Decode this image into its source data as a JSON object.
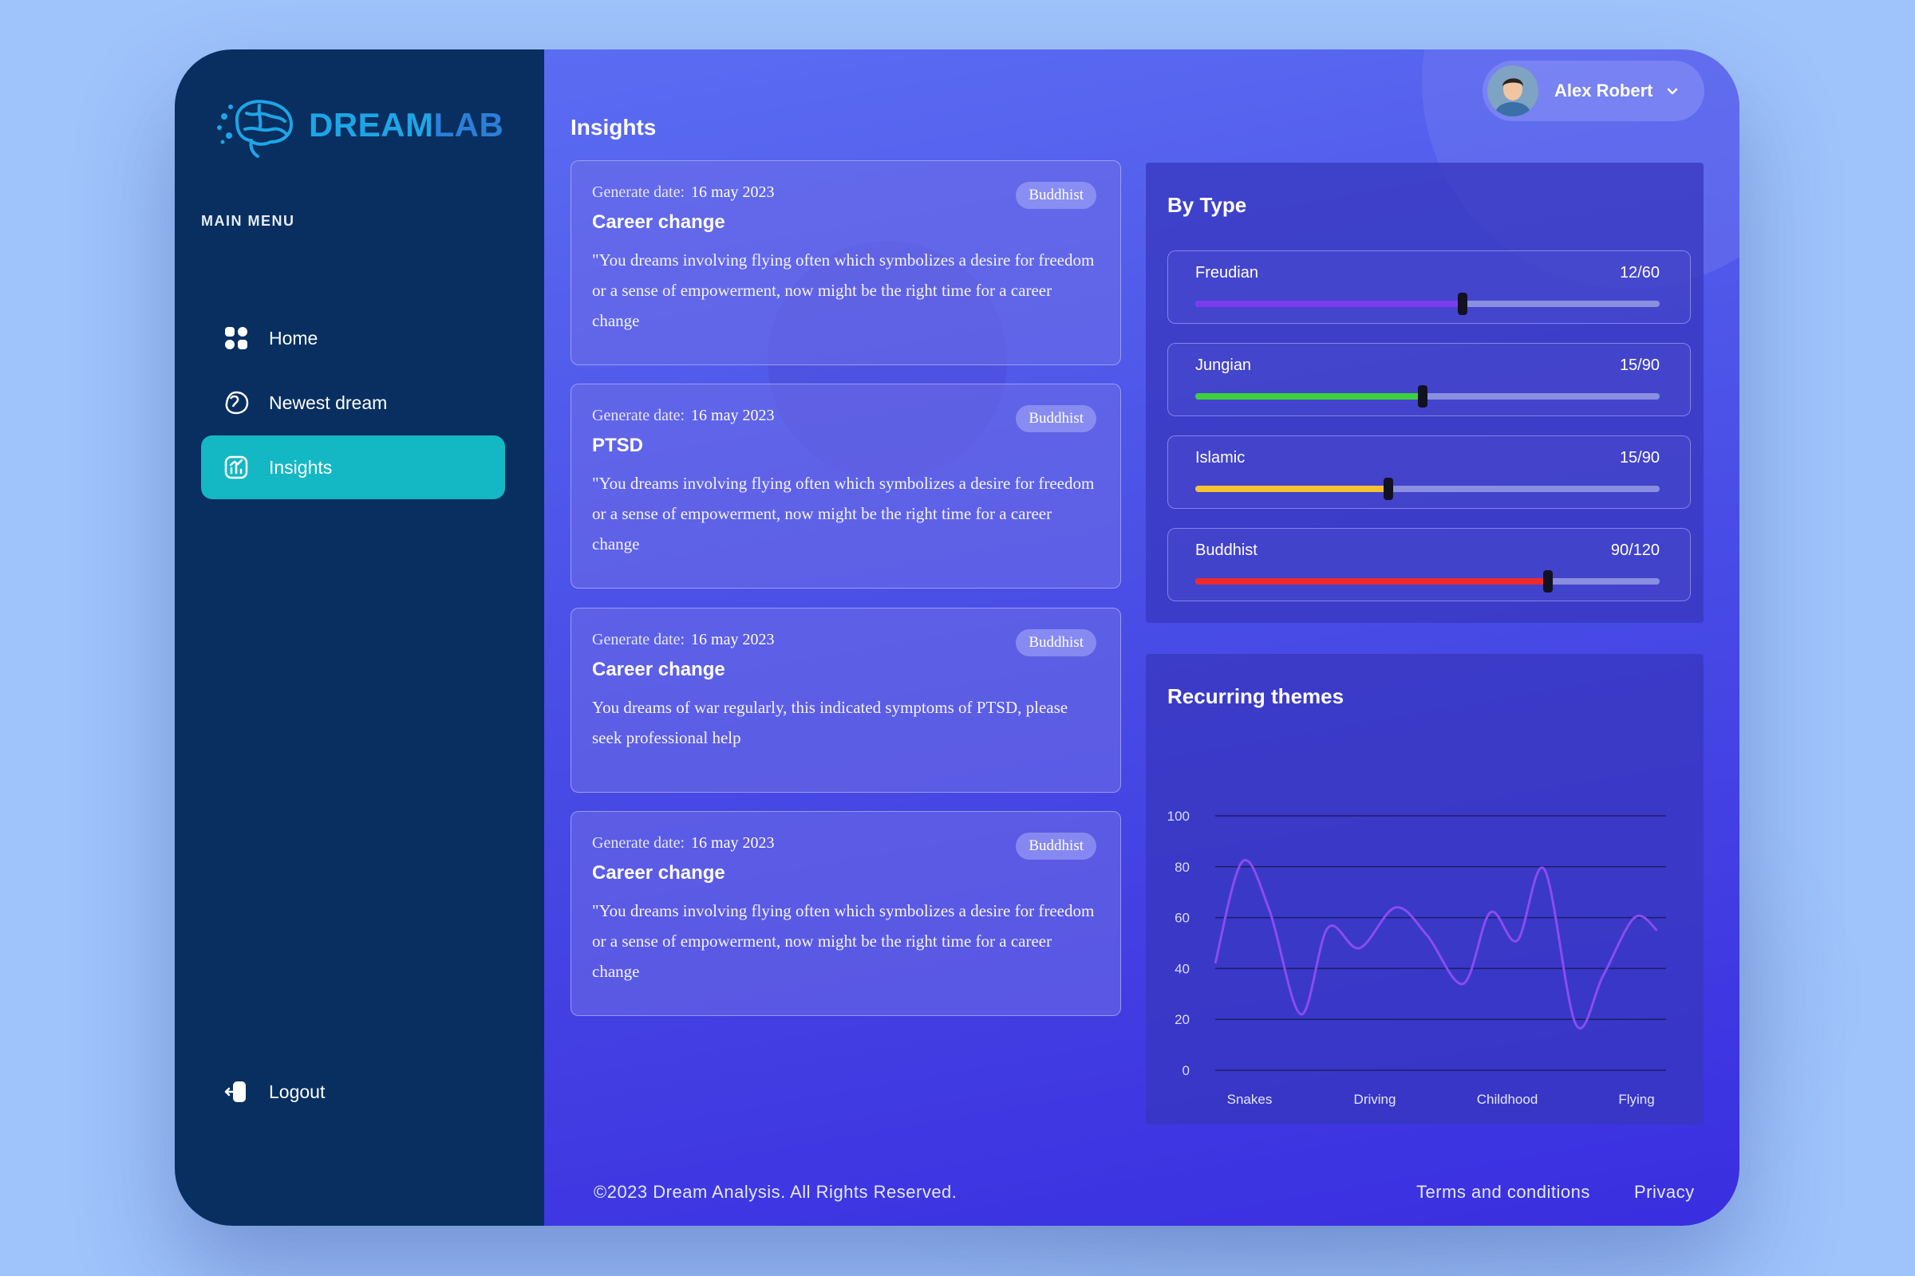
{
  "logo": {
    "part1": "DREAM",
    "part2": "LAB"
  },
  "sidebar": {
    "menu_title": "MAIN MENU",
    "items": [
      {
        "label": "Home"
      },
      {
        "label": "Newest dream"
      },
      {
        "label": "Insights"
      }
    ],
    "logout": "Logout"
  },
  "header": {
    "title": "Insights",
    "user_name": "Alex Robert"
  },
  "cards": [
    {
      "date_label": "Generate date:",
      "date": "16 may 2023",
      "badge": "Buddhist",
      "title": "Career change",
      "text": "\"You dreams involving flying often which symbolizes a desire for freedom or a sense of empowerment, now might be the right time for a career change"
    },
    {
      "date_label": "Generate date:",
      "date": "16 may 2023",
      "badge": "Buddhist",
      "title": "PTSD",
      "text": "\"You dreams involving flying often which symbolizes a desire for freedom or a sense of empowerment, now might be the right time for a career change"
    },
    {
      "date_label": "Generate date:",
      "date": "16 may 2023",
      "badge": "Buddhist",
      "title": "Career change",
      "text": "You dreams of war regularly, this indicated symptoms of PTSD, please seek professional help"
    },
    {
      "date_label": "Generate date:",
      "date": "16 may 2023",
      "badge": "Buddhist",
      "title": "Career change",
      "text": "\"You dreams involving flying often which symbolizes a desire for freedom or a sense of empowerment, now might be the right time for a career change"
    }
  ],
  "by_type": {
    "title": "By Type",
    "rows": [
      {
        "label": "Freudian",
        "value": "12/60",
        "level": 0.575,
        "color": "#7b3cf0"
      },
      {
        "label": "Jungian",
        "value": "15/90",
        "level": 0.49,
        "color": "#3cd13c"
      },
      {
        "label": "Islamic",
        "value": "15/90",
        "level": 0.415,
        "color": "#f5c232"
      },
      {
        "label": "Buddhist",
        "value": "90/120",
        "level": 0.76,
        "color": "#f02a2a"
      }
    ]
  },
  "chart_data": {
    "type": "line",
    "title": "Recurring themes",
    "categories": [
      "Snakes",
      "Driving",
      "Childhood",
      "Flying"
    ],
    "y_ticks": [
      0,
      20,
      40,
      60,
      80,
      100
    ],
    "ylim": [
      0,
      100
    ],
    "series": [
      {
        "name": "themes",
        "color": "#8a4cf0",
        "x": [
          0,
          0.06,
          0.12,
          0.19,
          0.25,
          0.32,
          0.4,
          0.47,
          0.55,
          0.61,
          0.67,
          0.73,
          0.8,
          0.86,
          0.93,
          0.98
        ],
        "y": [
          42,
          82,
          63,
          22,
          56,
          48,
          64,
          53,
          34,
          62,
          51,
          79,
          18,
          37,
          60,
          55
        ]
      }
    ]
  },
  "footer": {
    "copyright": "©2023 Dream Analysis. All Rights Reserved.",
    "terms": "Terms and conditions",
    "privacy": "Privacy"
  }
}
